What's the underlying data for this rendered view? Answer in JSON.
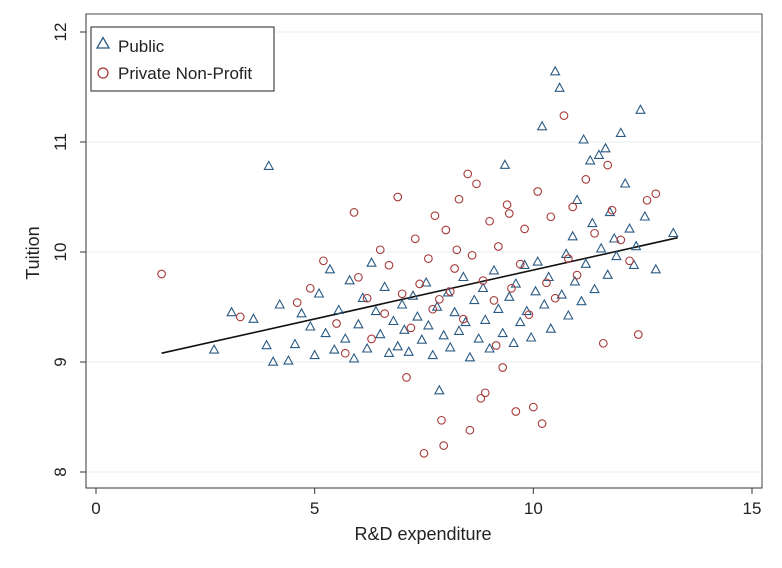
{
  "chart_data": {
    "type": "scatter",
    "xlabel": "R&D expenditure",
    "ylabel": "Tuition",
    "xlim": [
      0,
      15
    ],
    "ylim": [
      8,
      12
    ],
    "xticks": [
      "0",
      "5",
      "10",
      "15"
    ],
    "yticks": [
      "8",
      "9",
      "10",
      "11",
      "12"
    ],
    "grid": "horizontal",
    "legend_position": "top-left",
    "fit_line": {
      "x": [
        1.5,
        13.3
      ],
      "y": [
        9.08,
        10.13
      ],
      "color": "#111111"
    },
    "series": [
      {
        "name": "Public",
        "marker": "triangle",
        "color": "#2b5b84",
        "points": [
          [
            2.7,
            9.11
          ],
          [
            3.1,
            9.45
          ],
          [
            3.6,
            9.39
          ],
          [
            3.9,
            9.15
          ],
          [
            3.95,
            10.78
          ],
          [
            4.05,
            9.0
          ],
          [
            4.2,
            9.52
          ],
          [
            4.4,
            9.01
          ],
          [
            4.55,
            9.16
          ],
          [
            4.7,
            9.44
          ],
          [
            4.9,
            9.32
          ],
          [
            5.0,
            9.06
          ],
          [
            5.1,
            9.62
          ],
          [
            5.25,
            9.26
          ],
          [
            5.35,
            9.84
          ],
          [
            5.45,
            9.11
          ],
          [
            5.55,
            9.47
          ],
          [
            5.7,
            9.21
          ],
          [
            5.8,
            9.74
          ],
          [
            5.9,
            9.03
          ],
          [
            6.0,
            9.34
          ],
          [
            6.1,
            9.58
          ],
          [
            6.2,
            9.12
          ],
          [
            6.3,
            9.9
          ],
          [
            6.4,
            9.46
          ],
          [
            6.5,
            9.25
          ],
          [
            6.6,
            9.68
          ],
          [
            6.7,
            9.08
          ],
          [
            6.8,
            9.37
          ],
          [
            6.9,
            9.14
          ],
          [
            7.0,
            9.52
          ],
          [
            7.05,
            9.29
          ],
          [
            7.15,
            9.09
          ],
          [
            7.25,
            9.6
          ],
          [
            7.35,
            9.41
          ],
          [
            7.45,
            9.2
          ],
          [
            7.55,
            9.72
          ],
          [
            7.6,
            9.33
          ],
          [
            7.7,
            9.06
          ],
          [
            7.8,
            9.5
          ],
          [
            7.85,
            8.74
          ],
          [
            7.95,
            9.24
          ],
          [
            8.05,
            9.63
          ],
          [
            8.1,
            9.13
          ],
          [
            8.2,
            9.45
          ],
          [
            8.3,
            9.28
          ],
          [
            8.4,
            9.77
          ],
          [
            8.45,
            9.36
          ],
          [
            8.55,
            9.04
          ],
          [
            8.65,
            9.56
          ],
          [
            8.75,
            9.21
          ],
          [
            8.85,
            9.67
          ],
          [
            8.9,
            9.38
          ],
          [
            9.0,
            9.12
          ],
          [
            9.1,
            9.83
          ],
          [
            9.2,
            9.48
          ],
          [
            9.3,
            9.26
          ],
          [
            9.35,
            10.79
          ],
          [
            9.45,
            9.59
          ],
          [
            9.55,
            9.17
          ],
          [
            9.6,
            9.71
          ],
          [
            9.7,
            9.36
          ],
          [
            9.8,
            9.88
          ],
          [
            9.85,
            9.46
          ],
          [
            9.95,
            9.22
          ],
          [
            10.05,
            9.64
          ],
          [
            10.1,
            9.91
          ],
          [
            10.2,
            11.14
          ],
          [
            10.25,
            9.52
          ],
          [
            10.35,
            9.77
          ],
          [
            10.4,
            9.3
          ],
          [
            10.5,
            11.64
          ],
          [
            10.6,
            11.49
          ],
          [
            10.65,
            9.61
          ],
          [
            10.75,
            9.98
          ],
          [
            10.8,
            9.42
          ],
          [
            10.9,
            10.14
          ],
          [
            10.95,
            9.73
          ],
          [
            11.0,
            10.47
          ],
          [
            11.1,
            9.55
          ],
          [
            11.15,
            11.02
          ],
          [
            11.2,
            9.89
          ],
          [
            11.3,
            10.83
          ],
          [
            11.35,
            10.26
          ],
          [
            11.4,
            9.66
          ],
          [
            11.5,
            10.88
          ],
          [
            11.55,
            10.03
          ],
          [
            11.65,
            10.94
          ],
          [
            11.7,
            9.79
          ],
          [
            11.75,
            10.36
          ],
          [
            11.85,
            10.12
          ],
          [
            11.9,
            9.96
          ],
          [
            12.0,
            11.08
          ],
          [
            12.1,
            10.62
          ],
          [
            12.2,
            10.21
          ],
          [
            12.3,
            9.88
          ],
          [
            12.35,
            10.05
          ],
          [
            12.45,
            11.29
          ],
          [
            12.55,
            10.32
          ],
          [
            12.8,
            9.84
          ],
          [
            13.2,
            10.17
          ]
        ]
      },
      {
        "name": "Private Non-Profit",
        "marker": "circle",
        "color": "#a83a3a",
        "points": [
          [
            1.5,
            9.8
          ],
          [
            3.3,
            9.41
          ],
          [
            4.6,
            9.54
          ],
          [
            4.9,
            9.67
          ],
          [
            5.2,
            9.92
          ],
          [
            5.5,
            9.35
          ],
          [
            5.7,
            9.08
          ],
          [
            5.9,
            10.36
          ],
          [
            6.0,
            9.77
          ],
          [
            6.2,
            9.58
          ],
          [
            6.3,
            9.21
          ],
          [
            6.5,
            10.02
          ],
          [
            6.6,
            9.44
          ],
          [
            6.7,
            9.88
          ],
          [
            6.9,
            10.5
          ],
          [
            7.0,
            9.62
          ],
          [
            7.1,
            8.86
          ],
          [
            7.2,
            9.31
          ],
          [
            7.3,
            10.12
          ],
          [
            7.4,
            9.71
          ],
          [
            7.5,
            8.17
          ],
          [
            7.6,
            9.94
          ],
          [
            7.7,
            9.48
          ],
          [
            7.75,
            10.33
          ],
          [
            7.85,
            9.57
          ],
          [
            7.9,
            8.47
          ],
          [
            7.95,
            8.24
          ],
          [
            8.0,
            10.2
          ],
          [
            8.1,
            9.64
          ],
          [
            8.2,
            9.85
          ],
          [
            8.3,
            10.48
          ],
          [
            8.4,
            9.39
          ],
          [
            8.5,
            10.71
          ],
          [
            8.55,
            8.38
          ],
          [
            8.6,
            9.97
          ],
          [
            8.7,
            10.62
          ],
          [
            8.8,
            8.67
          ],
          [
            8.85,
            9.74
          ],
          [
            8.9,
            8.72
          ],
          [
            9.0,
            10.28
          ],
          [
            9.1,
            9.56
          ],
          [
            9.2,
            10.05
          ],
          [
            9.3,
            8.95
          ],
          [
            9.4,
            10.43
          ],
          [
            9.5,
            9.67
          ],
          [
            9.6,
            8.55
          ],
          [
            9.7,
            9.89
          ],
          [
            9.8,
            10.21
          ],
          [
            9.9,
            9.43
          ],
          [
            10.0,
            8.59
          ],
          [
            10.1,
            10.55
          ],
          [
            10.2,
            8.44
          ],
          [
            10.3,
            9.72
          ],
          [
            10.4,
            10.32
          ],
          [
            10.5,
            9.58
          ],
          [
            10.7,
            11.24
          ],
          [
            10.8,
            9.94
          ],
          [
            10.9,
            10.41
          ],
          [
            11.0,
            9.79
          ],
          [
            11.2,
            10.66
          ],
          [
            11.4,
            10.17
          ],
          [
            11.6,
            9.17
          ],
          [
            11.7,
            10.79
          ],
          [
            11.8,
            10.38
          ],
          [
            12.0,
            10.11
          ],
          [
            12.2,
            9.92
          ],
          [
            12.4,
            9.25
          ],
          [
            12.6,
            10.47
          ],
          [
            12.8,
            10.53
          ],
          [
            9.15,
            9.15
          ],
          [
            8.25,
            10.02
          ],
          [
            9.45,
            10.35
          ]
        ]
      }
    ]
  }
}
